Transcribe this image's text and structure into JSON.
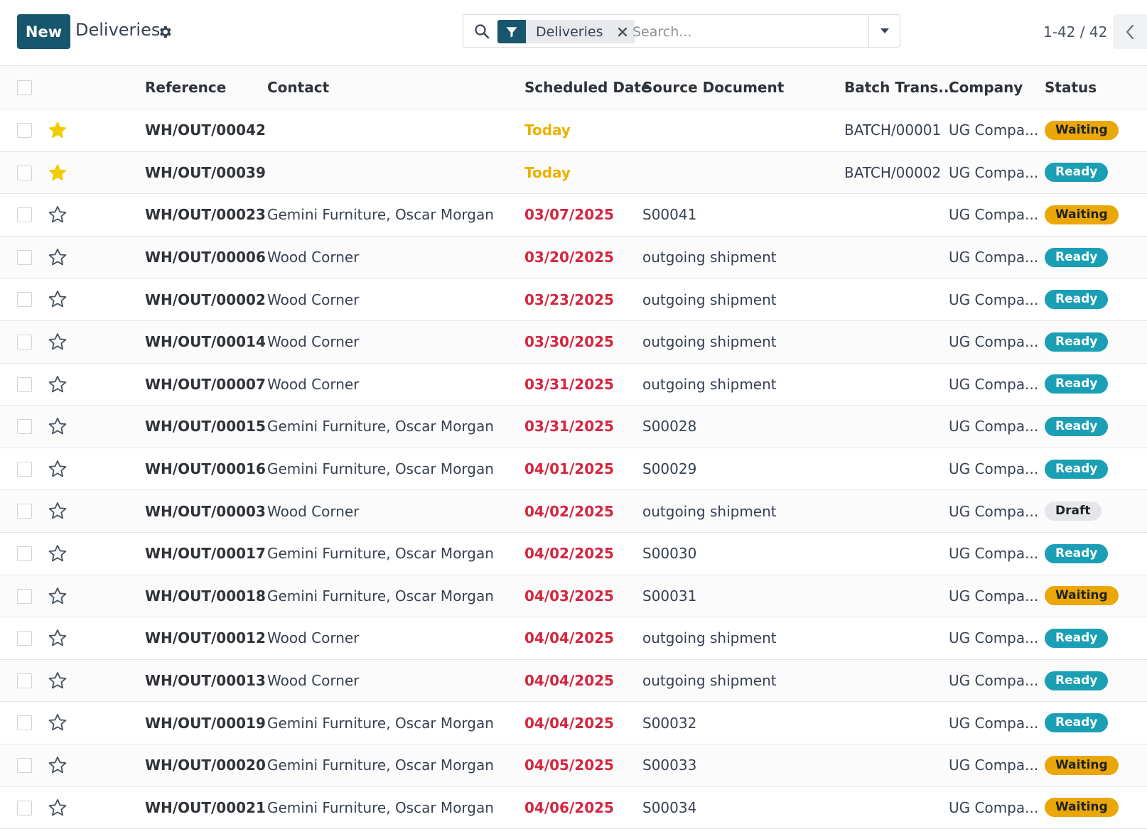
{
  "header": {
    "new_label": "New",
    "title": "Deliveries"
  },
  "search": {
    "facet_label": "Deliveries",
    "placeholder": "Search..."
  },
  "pager": {
    "value": "1-42 / 42"
  },
  "columns": {
    "reference": "Reference",
    "contact": "Contact",
    "scheduled_date": "Scheduled Date",
    "source_document": "Source Document",
    "batch": "Batch Trans...",
    "company": "Company",
    "status": "Status"
  },
  "colors": {
    "primary": "#17566d",
    "overdue": "#d4263f",
    "today": "#ecb100",
    "waiting": "#eba707",
    "ready": "#1b9fb4",
    "draft": "#e4e6ea",
    "star_active": "#f3cc00"
  },
  "rows": [
    {
      "starred": true,
      "reference": "WH/OUT/00042",
      "contact": "",
      "date": "Today",
      "date_state": "today",
      "source": "",
      "batch": "BATCH/00001",
      "company": "UG Compa...",
      "status": "Waiting"
    },
    {
      "starred": true,
      "reference": "WH/OUT/00039",
      "contact": "",
      "date": "Today",
      "date_state": "today",
      "source": "",
      "batch": "BATCH/00002",
      "company": "UG Compa...",
      "status": "Ready"
    },
    {
      "starred": false,
      "reference": "WH/OUT/00023",
      "contact": "Gemini Furniture, Oscar Morgan",
      "date": "03/07/2025",
      "date_state": "overdue",
      "source": "S00041",
      "batch": "",
      "company": "UG Compa...",
      "status": "Waiting"
    },
    {
      "starred": false,
      "reference": "WH/OUT/00006",
      "contact": "Wood Corner",
      "date": "03/20/2025",
      "date_state": "overdue",
      "source": "outgoing shipment",
      "batch": "",
      "company": "UG Compa...",
      "status": "Ready"
    },
    {
      "starred": false,
      "reference": "WH/OUT/00002",
      "contact": "Wood Corner",
      "date": "03/23/2025",
      "date_state": "overdue",
      "source": "outgoing shipment",
      "batch": "",
      "company": "UG Compa...",
      "status": "Ready"
    },
    {
      "starred": false,
      "reference": "WH/OUT/00014",
      "contact": "Wood Corner",
      "date": "03/30/2025",
      "date_state": "overdue",
      "source": "outgoing shipment",
      "batch": "",
      "company": "UG Compa...",
      "status": "Ready"
    },
    {
      "starred": false,
      "reference": "WH/OUT/00007",
      "contact": "Wood Corner",
      "date": "03/31/2025",
      "date_state": "overdue",
      "source": "outgoing shipment",
      "batch": "",
      "company": "UG Compa...",
      "status": "Ready"
    },
    {
      "starred": false,
      "reference": "WH/OUT/00015",
      "contact": "Gemini Furniture, Oscar Morgan",
      "date": "03/31/2025",
      "date_state": "overdue",
      "source": "S00028",
      "batch": "",
      "company": "UG Compa...",
      "status": "Ready"
    },
    {
      "starred": false,
      "reference": "WH/OUT/00016",
      "contact": "Gemini Furniture, Oscar Morgan",
      "date": "04/01/2025",
      "date_state": "overdue",
      "source": "S00029",
      "batch": "",
      "company": "UG Compa...",
      "status": "Ready"
    },
    {
      "starred": false,
      "reference": "WH/OUT/00003",
      "contact": "Wood Corner",
      "date": "04/02/2025",
      "date_state": "overdue",
      "source": "outgoing shipment",
      "batch": "",
      "company": "UG Compa...",
      "status": "Draft"
    },
    {
      "starred": false,
      "reference": "WH/OUT/00017",
      "contact": "Gemini Furniture, Oscar Morgan",
      "date": "04/02/2025",
      "date_state": "overdue",
      "source": "S00030",
      "batch": "",
      "company": "UG Compa...",
      "status": "Ready"
    },
    {
      "starred": false,
      "reference": "WH/OUT/00018",
      "contact": "Gemini Furniture, Oscar Morgan",
      "date": "04/03/2025",
      "date_state": "overdue",
      "source": "S00031",
      "batch": "",
      "company": "UG Compa...",
      "status": "Waiting"
    },
    {
      "starred": false,
      "reference": "WH/OUT/00012",
      "contact": "Wood Corner",
      "date": "04/04/2025",
      "date_state": "overdue",
      "source": "outgoing shipment",
      "batch": "",
      "company": "UG Compa...",
      "status": "Ready"
    },
    {
      "starred": false,
      "reference": "WH/OUT/00013",
      "contact": "Wood Corner",
      "date": "04/04/2025",
      "date_state": "overdue",
      "source": "outgoing shipment",
      "batch": "",
      "company": "UG Compa...",
      "status": "Ready"
    },
    {
      "starred": false,
      "reference": "WH/OUT/00019",
      "contact": "Gemini Furniture, Oscar Morgan",
      "date": "04/04/2025",
      "date_state": "overdue",
      "source": "S00032",
      "batch": "",
      "company": "UG Compa...",
      "status": "Ready"
    },
    {
      "starred": false,
      "reference": "WH/OUT/00020",
      "contact": "Gemini Furniture, Oscar Morgan",
      "date": "04/05/2025",
      "date_state": "overdue",
      "source": "S00033",
      "batch": "",
      "company": "UG Compa...",
      "status": "Waiting"
    },
    {
      "starred": false,
      "reference": "WH/OUT/00021",
      "contact": "Gemini Furniture, Oscar Morgan",
      "date": "04/06/2025",
      "date_state": "overdue",
      "source": "S00034",
      "batch": "",
      "company": "UG Compa...",
      "status": "Waiting"
    }
  ]
}
